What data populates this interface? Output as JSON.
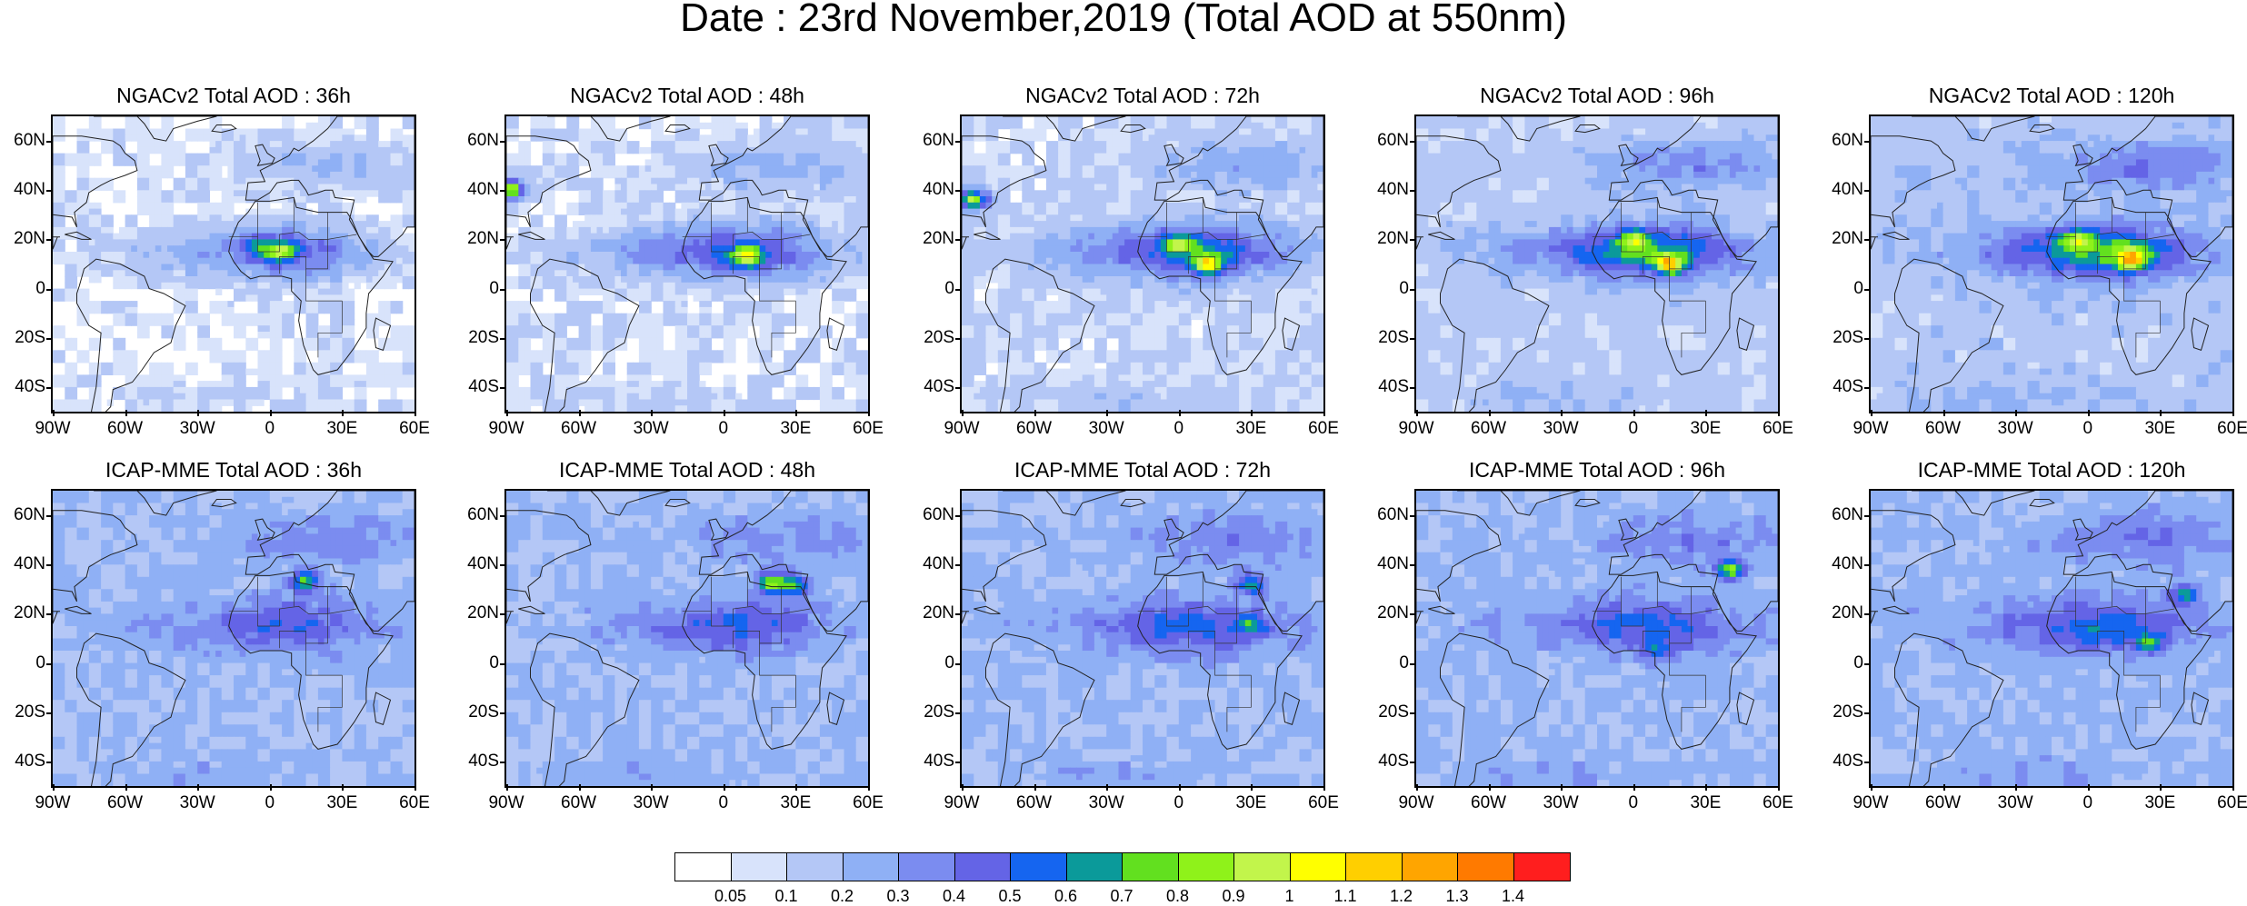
{
  "title": "Date : 23rd November,2019 (Total AOD at 550nm)",
  "panels": [
    {
      "title": "NGACv2 Total AOD : 36h"
    },
    {
      "title": "NGACv2 Total AOD : 48h"
    },
    {
      "title": "NGACv2 Total AOD : 72h"
    },
    {
      "title": "NGACv2 Total AOD : 96h"
    },
    {
      "title": "NGACv2 Total AOD : 120h"
    },
    {
      "title": "ICAP-MME Total AOD : 36h"
    },
    {
      "title": "ICAP-MME Total AOD : 48h"
    },
    {
      "title": "ICAP-MME Total AOD : 72h"
    },
    {
      "title": "ICAP-MME Total AOD : 96h"
    },
    {
      "title": "ICAP-MME Total AOD : 120h"
    }
  ],
  "lat_labels": [
    "60N",
    "40N",
    "20N",
    "0",
    "20S",
    "40S"
  ],
  "lon_labels": [
    "90W",
    "60W",
    "30W",
    "0",
    "30E",
    "60E"
  ],
  "colorbar": {
    "labels": [
      "0.05",
      "0.1",
      "0.2",
      "0.3",
      "0.4",
      "0.5",
      "0.6",
      "0.7",
      "0.8",
      "0.9",
      "1",
      "1.1",
      "1.2",
      "1.3",
      "1.4"
    ],
    "colors": [
      "#ffffff",
      "#d8e3fb",
      "#b4c7f6",
      "#8fb0f5",
      "#7b8cf0",
      "#6464e6",
      "#1565f0",
      "#0b9a9a",
      "#62e01f",
      "#8ff21a",
      "#c2f54b",
      "#ffff00",
      "#ffcf00",
      "#ffa500",
      "#ff7a00",
      "#ff1e1e"
    ]
  }
}
